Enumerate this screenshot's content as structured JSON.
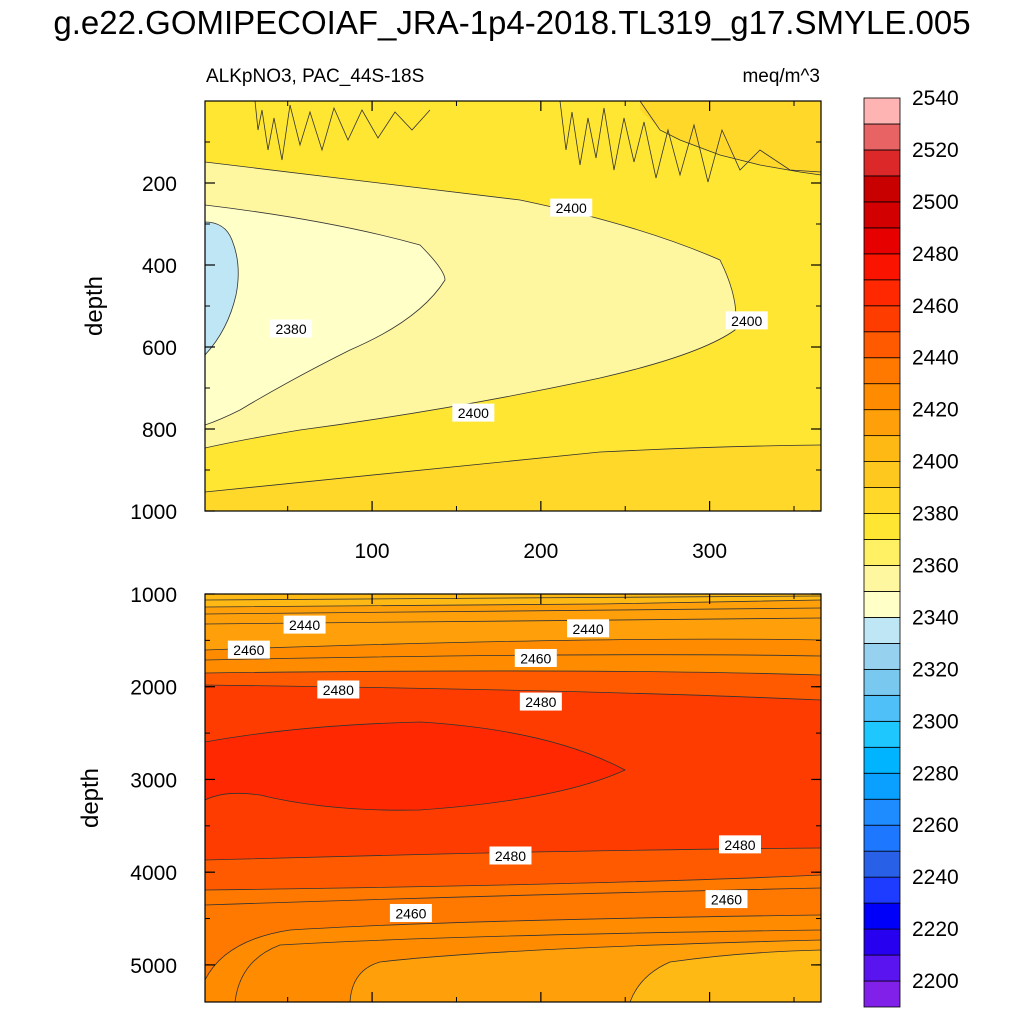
{
  "chart_data": {
    "type": "heatmap",
    "title": "g.e22.GOMIPECOIAF_JRA-1p4-2018.TL319_g17.SMYLE.005",
    "subtitle_left": "ALKpNO3, PAC_44S-18S",
    "subtitle_right": "meq/m^3",
    "xlabel": "",
    "ylabel": "depth",
    "x_range": [
      1,
      366
    ],
    "x_ticks": [
      100,
      200,
      300
    ],
    "x_tick_labels": [
      "100",
      "200",
      "300"
    ],
    "panels": [
      {
        "name": "upper",
        "y_range": [
          0,
          1000
        ],
        "y_ticks": [
          200,
          400,
          600,
          800,
          1000
        ],
        "y_tick_labels": [
          "200",
          "400",
          "600",
          "800",
          "1000"
        ],
        "contour_labels": [
          {
            "text": "2400",
            "x": 218,
            "y": 260
          },
          {
            "text": "2400",
            "x": 322,
            "y": 535
          },
          {
            "text": "2380",
            "x": 52,
            "y": 555
          },
          {
            "text": "2400",
            "x": 160,
            "y": 760
          }
        ]
      },
      {
        "name": "lower",
        "y_range": [
          1000,
          5400
        ],
        "y_ticks": [
          1000,
          2000,
          3000,
          4000,
          5000
        ],
        "y_tick_labels": [
          "1000",
          "2000",
          "3000",
          "4000",
          "5000"
        ],
        "contour_labels": [
          {
            "text": "2440",
            "x": 60,
            "y": 1330
          },
          {
            "text": "2440",
            "x": 228,
            "y": 1370
          },
          {
            "text": "2460",
            "x": 27,
            "y": 1600
          },
          {
            "text": "2460",
            "x": 197,
            "y": 1690
          },
          {
            "text": "2480",
            "x": 80,
            "y": 2030
          },
          {
            "text": "2480",
            "x": 200,
            "y": 2160
          },
          {
            "text": "2480",
            "x": 182,
            "y": 3820
          },
          {
            "text": "2480",
            "x": 318,
            "y": 3700
          },
          {
            "text": "2460",
            "x": 123,
            "y": 4440
          },
          {
            "text": "2460",
            "x": 310,
            "y": 4290
          }
        ]
      }
    ],
    "colorbar": {
      "labels": [
        "2200",
        "2220",
        "2240",
        "2260",
        "2280",
        "2300",
        "2320",
        "2340",
        "2360",
        "2380",
        "2400",
        "2420",
        "2440",
        "2460",
        "2480",
        "2500",
        "2520",
        "2540"
      ],
      "colors": [
        "#8020e8",
        "#5a14f0",
        "#2800f0",
        "#0000fa",
        "#1e3cff",
        "#2860e8",
        "#1e78ff",
        "#1e8cff",
        "#0aa0ff",
        "#00b4ff",
        "#1ec8ff",
        "#50c0f8",
        "#78c8f0",
        "#96d2f0",
        "#bee6f5",
        "#ffffc8",
        "#fff7a0",
        "#fff064",
        "#ffe632",
        "#ffd82a",
        "#ffc81e",
        "#ffb914",
        "#ffa00a",
        "#ff8c00",
        "#ff7800",
        "#ff5a00",
        "#ff3c00",
        "#ff2800",
        "#fa1400",
        "#e60000",
        "#d20000",
        "#c80000",
        "#dc2828",
        "#e86464",
        "#ffb4b4"
      ]
    },
    "fill_colors": {
      "c2350": "#bee6f5",
      "c2370": "#ffffc8",
      "c2390": "#fff7a0",
      "c2405": "#ffe632",
      "c2412": "#ffd82a",
      "c2418": "#ffc81e",
      "c2425": "#ffb914",
      "c2435": "#ffa00a",
      "c2445": "#ff8c00",
      "c2455": "#ff7800",
      "c2465": "#ff5a00",
      "c2475": "#ff3c00",
      "c2485": "#ff2800",
      "c2495": "#fa1400"
    }
  }
}
